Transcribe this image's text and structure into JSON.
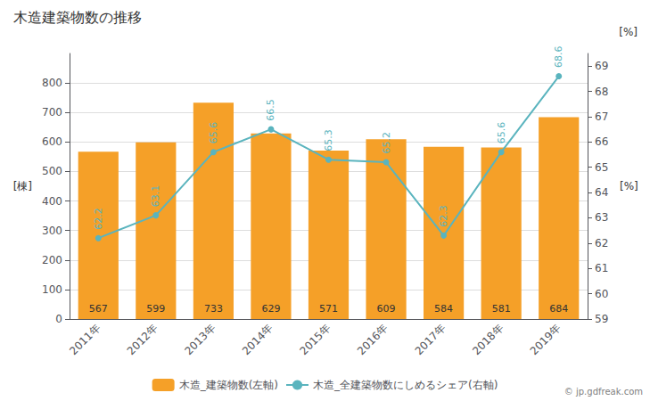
{
  "chart_data": {
    "type": "bar",
    "title": "木造建築物数の推移",
    "categories": [
      "2011年",
      "2012年",
      "2013年",
      "2014年",
      "2015年",
      "2016年",
      "2017年",
      "2018年",
      "2019年"
    ],
    "series": [
      {
        "name": "木造_建築物数(左軸)",
        "type": "bar",
        "color": "#f5a028",
        "values": [
          567,
          599,
          733,
          629,
          571,
          609,
          584,
          581,
          684
        ],
        "data_labels": true
      },
      {
        "name": "木造_全建築物数にしめるシェア(右軸)",
        "type": "line",
        "color": "#5ab4be",
        "axis": "y2",
        "marker": "circle",
        "values": [
          62.2,
          63.1,
          65.6,
          66.5,
          65.3,
          65.2,
          62.3,
          65.6,
          68.6
        ],
        "data_labels": true
      }
    ],
    "ylabel": "[棟]",
    "y2label": "[%]",
    "ylim": [
      0,
      900
    ],
    "yticks": [
      0,
      100,
      200,
      300,
      400,
      500,
      600,
      700,
      800
    ],
    "y2lim": [
      59.0,
      69.5
    ],
    "y2ticks": [
      59.0,
      60.0,
      61.0,
      62.0,
      63.0,
      64.0,
      65.0,
      66.0,
      67.0,
      68.0,
      69.0
    ],
    "grid": true,
    "legend": "bottom",
    "annotations": [
      {
        "text": "[%]"
      },
      {
        "text": "© jp.gdfreak.com"
      }
    ]
  }
}
